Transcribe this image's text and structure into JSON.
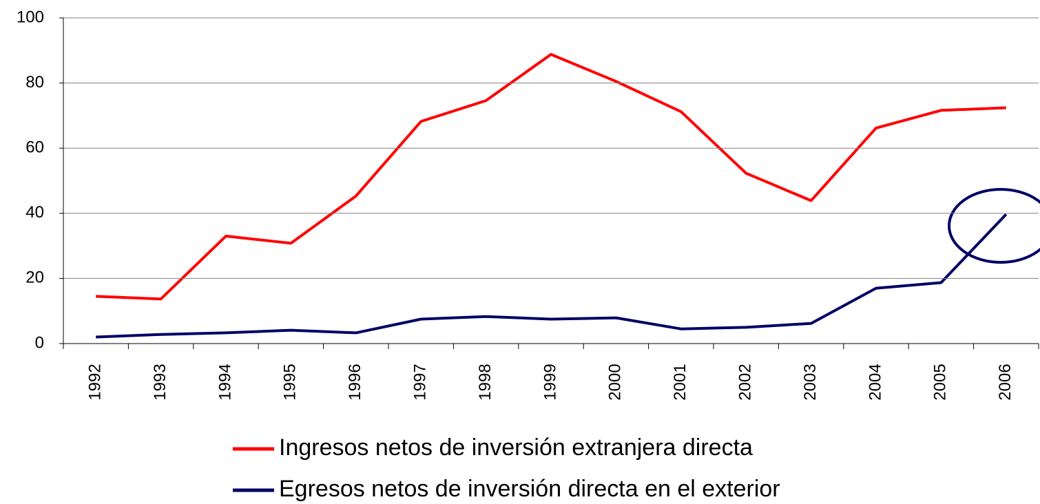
{
  "chart_data": {
    "type": "line",
    "categories": [
      "1992",
      "1993",
      "1994",
      "1995",
      "1996",
      "1997",
      "1998",
      "1999",
      "2000",
      "2001",
      "2002",
      "2003",
      "2004",
      "2005",
      "2006"
    ],
    "series": [
      {
        "name": "Ingresos netos de inversión extranjera directa",
        "color": "#ff0000",
        "values": [
          14.5,
          13.7,
          33,
          30.8,
          45.3,
          68.2,
          74.6,
          88.8,
          80.5,
          71.2,
          52.3,
          43.9,
          66.2,
          71.6,
          72.4
        ]
      },
      {
        "name": "Egresos netos de inversión directa en el exterior",
        "color": "#000066",
        "values": [
          2.0,
          2.8,
          3.3,
          4.1,
          3.3,
          7.5,
          8.3,
          7.5,
          7.9,
          4.5,
          5.0,
          6.2,
          17.0,
          18.7,
          39.7
        ]
      }
    ],
    "ylim": [
      0,
      100
    ],
    "yticks": [
      0,
      20,
      40,
      60,
      80,
      100
    ],
    "grid": true,
    "legend": "bottom"
  }
}
